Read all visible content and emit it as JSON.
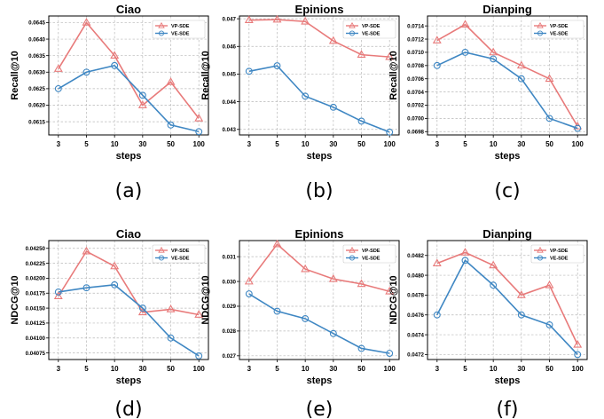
{
  "colors": {
    "vp": "#e87a7a",
    "ve": "#3f87c3"
  },
  "legend_placement": "top-right",
  "grid": true,
  "chart_data": [
    {
      "type": "line",
      "title": "Ciao",
      "caption": "(a)",
      "xlabel": "steps",
      "ylabel": "Recall@10",
      "categories": [
        "3",
        "5",
        "10",
        "30",
        "50",
        "100"
      ],
      "ylim": [
        0.0611,
        0.0647
      ],
      "yticks": [
        "0.0615",
        "0.0620",
        "0.0625",
        "0.0630",
        "0.0635",
        "0.0640",
        "0.0645"
      ],
      "ytick_values": [
        0.0615,
        0.062,
        0.0625,
        0.063,
        0.0635,
        0.064,
        0.0645
      ],
      "series": [
        {
          "name": "VP-SDE",
          "values": [
            0.0631,
            0.0645,
            0.0635,
            0.062,
            0.0627,
            0.0616
          ]
        },
        {
          "name": "VE-SDE",
          "values": [
            0.0625,
            0.063,
            0.0632,
            0.0623,
            0.0614,
            0.0612
          ]
        }
      ]
    },
    {
      "type": "line",
      "title": "Epinions",
      "caption": "(b)",
      "xlabel": "steps",
      "ylabel": "Recall@10",
      "categories": [
        "3",
        "5",
        "10",
        "30",
        "50",
        "100"
      ],
      "ylim": [
        0.0428,
        0.0471
      ],
      "yticks": [
        "0.043",
        "0.044",
        "0.045",
        "0.046",
        "0.047"
      ],
      "ytick_values": [
        0.043,
        0.044,
        0.045,
        0.046,
        0.047
      ],
      "series": [
        {
          "name": "VP-SDE",
          "values": [
            0.04695,
            0.04697,
            0.0469,
            0.0462,
            0.0457,
            0.04562
          ]
        },
        {
          "name": "VE-SDE",
          "values": [
            0.0451,
            0.0453,
            0.0442,
            0.0438,
            0.0433,
            0.0429
          ]
        }
      ]
    },
    {
      "type": "line",
      "title": "Dianping",
      "caption": "(c)",
      "xlabel": "steps",
      "ylabel": "Recall@10",
      "categories": [
        "3",
        "5",
        "10",
        "30",
        "50",
        "100"
      ],
      "ylim": [
        0.06975,
        0.07155
      ],
      "yticks": [
        "0.0698",
        "0.0700",
        "0.0702",
        "0.0704",
        "0.0706",
        "0.0708",
        "0.0710",
        "0.0712",
        "0.0714"
      ],
      "ytick_values": [
        0.0698,
        0.07,
        0.0702,
        0.0704,
        0.0706,
        0.0708,
        0.071,
        0.0712,
        0.0714
      ],
      "series": [
        {
          "name": "VP-SDE",
          "values": [
            0.07118,
            0.07142,
            0.071,
            0.0708,
            0.0706,
            0.06988
          ]
        },
        {
          "name": "VE-SDE",
          "values": [
            0.0708,
            0.071,
            0.0709,
            0.0706,
            0.07,
            0.06985
          ]
        }
      ]
    },
    {
      "type": "line",
      "title": "Ciao",
      "caption": "(d)",
      "xlabel": "steps",
      "ylabel": "NDCG@10",
      "categories": [
        "3",
        "5",
        "10",
        "30",
        "50",
        "100"
      ],
      "ylim": [
        0.04064,
        0.04263
      ],
      "yticks": [
        "0.04075",
        "0.04100",
        "0.04125",
        "0.04150",
        "0.04175",
        "0.04200",
        "0.04225",
        "0.04250"
      ],
      "ytick_values": [
        0.04075,
        0.041,
        0.04125,
        0.0415,
        0.04175,
        0.042,
        0.04225,
        0.0425
      ],
      "series": [
        {
          "name": "VP-SDE",
          "values": [
            0.0417,
            0.04245,
            0.0422,
            0.04143,
            0.04148,
            0.04139
          ]
        },
        {
          "name": "VE-SDE",
          "values": [
            0.04177,
            0.04184,
            0.04189,
            0.0415,
            0.041,
            0.0407
          ]
        }
      ]
    },
    {
      "type": "line",
      "title": "Epinions",
      "caption": "(e)",
      "xlabel": "steps",
      "ylabel": "NDCG@10",
      "categories": [
        "3",
        "5",
        "10",
        "30",
        "50",
        "100"
      ],
      "ylim": [
        0.02685,
        0.03165
      ],
      "yticks": [
        "0.027",
        "0.028",
        "0.029",
        "0.030",
        "0.031"
      ],
      "ytick_values": [
        0.027,
        0.028,
        0.029,
        0.03,
        0.031
      ],
      "series": [
        {
          "name": "VP-SDE",
          "values": [
            0.03,
            0.0315,
            0.0305,
            0.0301,
            0.0299,
            0.0296
          ]
        },
        {
          "name": "VE-SDE",
          "values": [
            0.0295,
            0.0288,
            0.0285,
            0.0279,
            0.0273,
            0.0271
          ]
        }
      ]
    },
    {
      "type": "line",
      "title": "Dianping",
      "caption": "(f)",
      "xlabel": "steps",
      "ylabel": "NDCG@10",
      "categories": [
        "3",
        "5",
        "10",
        "30",
        "50",
        "100"
      ],
      "ylim": [
        0.04715,
        0.04835
      ],
      "yticks": [
        "0.0472",
        "0.0474",
        "0.0476",
        "0.0478",
        "0.0480",
        "0.0482"
      ],
      "ytick_values": [
        0.0472,
        0.0474,
        0.0476,
        0.0478,
        0.048,
        0.0482
      ],
      "series": [
        {
          "name": "VP-SDE",
          "values": [
            0.04812,
            0.04823,
            0.0481,
            0.0478,
            0.0479,
            0.0473
          ]
        },
        {
          "name": "VE-SDE",
          "values": [
            0.0476,
            0.04815,
            0.0479,
            0.0476,
            0.0475,
            0.0472
          ]
        }
      ]
    }
  ]
}
